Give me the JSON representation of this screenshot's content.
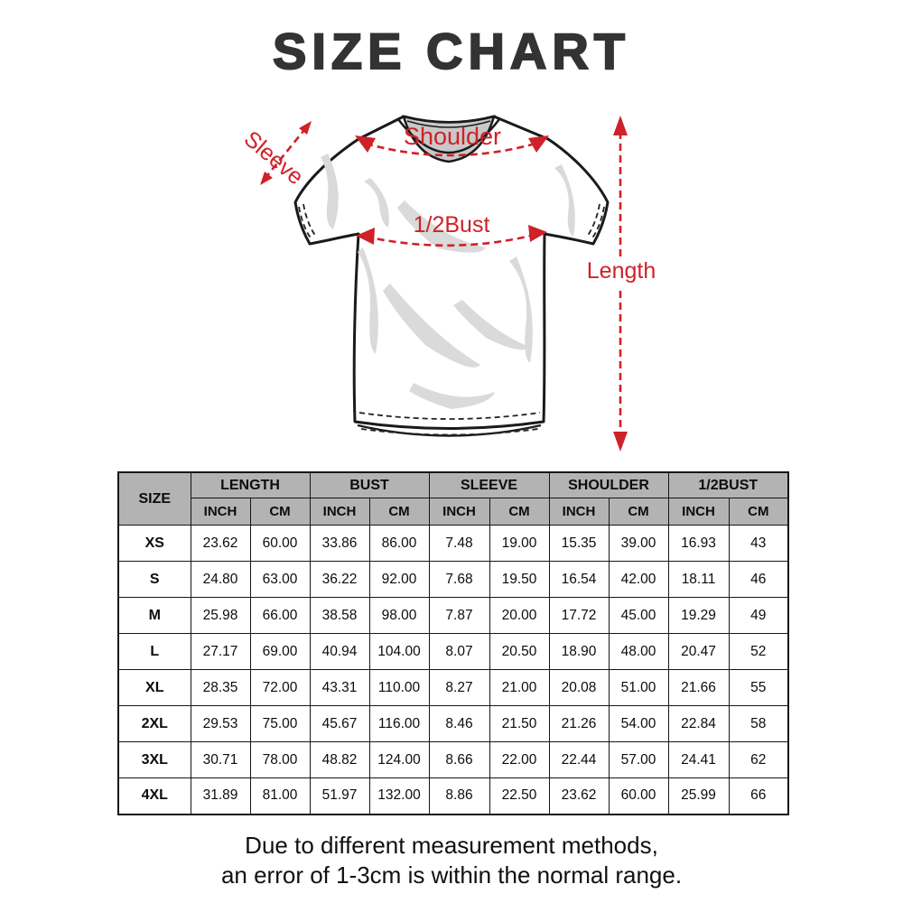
{
  "title": "SIZE CHART",
  "colors": {
    "accent_red": "#cf2128",
    "header_gray": "#b3b3b3",
    "title_color": "#333333"
  },
  "diagram": {
    "labels": {
      "sleeve": "Sleeve",
      "shoulder": "Shoulder",
      "half_bust": "1/2Bust",
      "length": "Length"
    }
  },
  "chart_data": {
    "type": "table",
    "title": "SIZE CHART",
    "row_header": "SIZE",
    "column_groups": [
      "LENGTH",
      "BUST",
      "SLEEVE",
      "SHOULDER",
      "1/2BUST"
    ],
    "unit_columns": [
      "INCH",
      "CM"
    ],
    "rows": [
      {
        "size": "XS",
        "values": [
          "23.62",
          "60.00",
          "33.86",
          "86.00",
          "7.48",
          "19.00",
          "15.35",
          "39.00",
          "16.93",
          "43"
        ]
      },
      {
        "size": "S",
        "values": [
          "24.80",
          "63.00",
          "36.22",
          "92.00",
          "7.68",
          "19.50",
          "16.54",
          "42.00",
          "18.11",
          "46"
        ]
      },
      {
        "size": "M",
        "values": [
          "25.98",
          "66.00",
          "38.58",
          "98.00",
          "7.87",
          "20.00",
          "17.72",
          "45.00",
          "19.29",
          "49"
        ]
      },
      {
        "size": "L",
        "values": [
          "27.17",
          "69.00",
          "40.94",
          "104.00",
          "8.07",
          "20.50",
          "18.90",
          "48.00",
          "20.47",
          "52"
        ]
      },
      {
        "size": "XL",
        "values": [
          "28.35",
          "72.00",
          "43.31",
          "110.00",
          "8.27",
          "21.00",
          "20.08",
          "51.00",
          "21.66",
          "55"
        ]
      },
      {
        "size": "2XL",
        "values": [
          "29.53",
          "75.00",
          "45.67",
          "116.00",
          "8.46",
          "21.50",
          "21.26",
          "54.00",
          "22.84",
          "58"
        ]
      },
      {
        "size": "3XL",
        "values": [
          "30.71",
          "78.00",
          "48.82",
          "124.00",
          "8.66",
          "22.00",
          "22.44",
          "57.00",
          "24.41",
          "62"
        ]
      },
      {
        "size": "4XL",
        "values": [
          "31.89",
          "81.00",
          "51.97",
          "132.00",
          "8.86",
          "22.50",
          "23.62",
          "60.00",
          "25.99",
          "66"
        ]
      }
    ]
  },
  "footer": {
    "line1": "Due to different measurement methods,",
    "line2": "an error of 1-3cm is within the normal range."
  }
}
